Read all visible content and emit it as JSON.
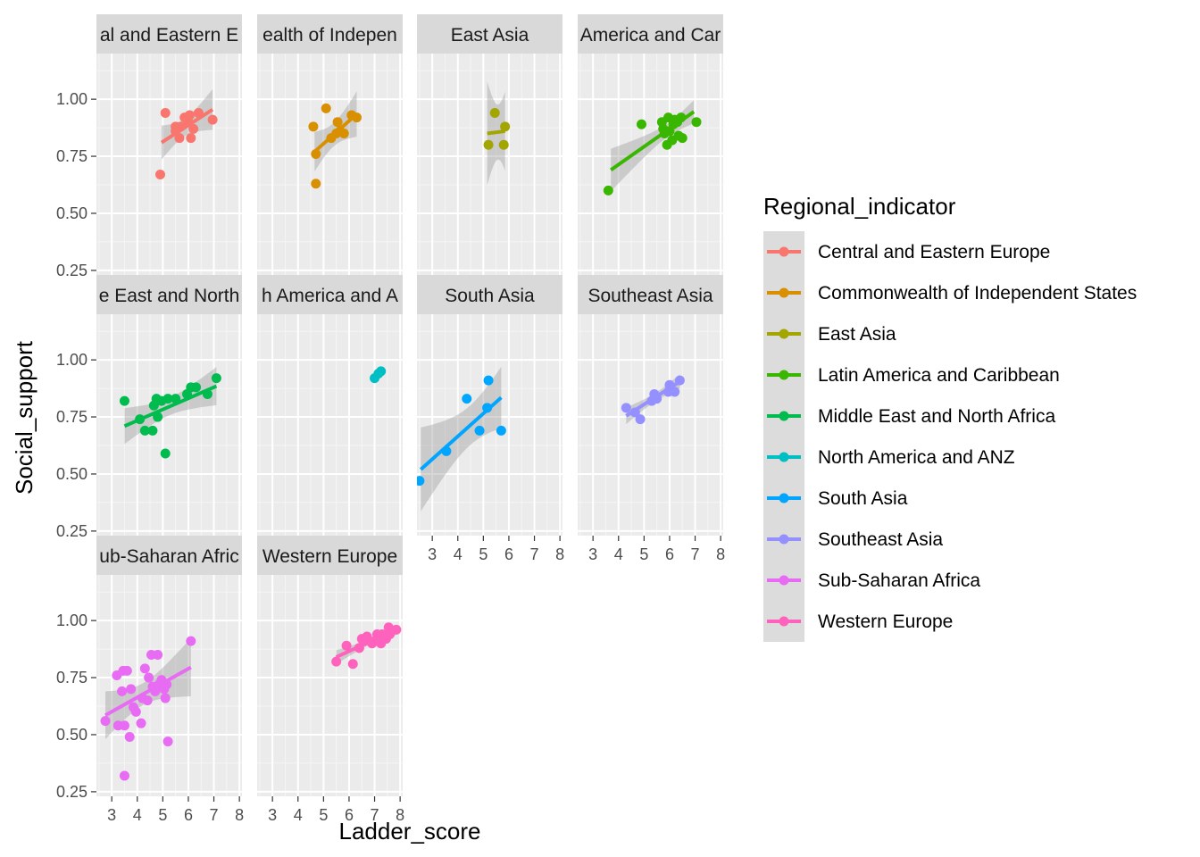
{
  "chart_data": {
    "type": "scatter",
    "facet_by": "Regional_indicator",
    "xlabel": "Ladder_score",
    "ylabel": "Social_support",
    "xlim": [
      2.4,
      8.1
    ],
    "ylim": [
      0.23,
      1.2
    ],
    "x_ticks": [
      "3",
      "4",
      "5",
      "6",
      "7",
      "8"
    ],
    "y_ticks": [
      "0.25",
      "0.50",
      "0.75",
      "1.00"
    ],
    "smooth": "lm",
    "legend": {
      "title": "Regional_indicator",
      "position": "right"
    },
    "series": [
      {
        "name": "Central and Eastern Europe",
        "strip_label": "al and Eastern E",
        "color": "#F8766D",
        "points": [
          [
            5.1,
            0.94
          ],
          [
            4.9,
            0.67
          ],
          [
            5.5,
            0.86
          ],
          [
            5.5,
            0.88
          ],
          [
            5.65,
            0.83
          ],
          [
            5.7,
            0.88
          ],
          [
            5.85,
            0.92
          ],
          [
            6.0,
            0.9
          ],
          [
            6.05,
            0.93
          ],
          [
            6.1,
            0.83
          ],
          [
            6.2,
            0.87
          ],
          [
            6.4,
            0.94
          ],
          [
            6.95,
            0.91
          ]
        ],
        "fit": {
          "x": [
            4.95,
            6.95
          ],
          "y": [
            0.81,
            0.955
          ]
        }
      },
      {
        "name": "Commonwealth of Independent States",
        "strip_label": "ealth of Indepen",
        "color": "#D89000",
        "points": [
          [
            4.6,
            0.88
          ],
          [
            4.7,
            0.76
          ],
          [
            4.7,
            0.63
          ],
          [
            5.1,
            0.96
          ],
          [
            5.3,
            0.83
          ],
          [
            5.5,
            0.85
          ],
          [
            5.55,
            0.9
          ],
          [
            5.65,
            0.86
          ],
          [
            5.8,
            0.85
          ],
          [
            6.1,
            0.93
          ],
          [
            6.3,
            0.92
          ]
        ],
        "fit": {
          "x": [
            4.65,
            6.3
          ],
          "y": [
            0.77,
            0.935
          ]
        }
      },
      {
        "name": "East Asia",
        "strip_label": "East Asia",
        "color": "#A3A500",
        "points": [
          [
            5.2,
            0.8
          ],
          [
            5.45,
            0.94
          ],
          [
            5.8,
            0.8
          ],
          [
            5.85,
            0.88
          ]
        ],
        "fit": {
          "x": [
            5.15,
            5.85
          ],
          "y": [
            0.85,
            0.86
          ]
        }
      },
      {
        "name": "Latin America and Caribbean",
        "strip_label": "America and Car",
        "color": "#39B600",
        "points": [
          [
            3.6,
            0.6
          ],
          [
            4.9,
            0.89
          ],
          [
            5.7,
            0.9
          ],
          [
            5.75,
            0.87
          ],
          [
            5.8,
            0.85
          ],
          [
            5.9,
            0.8
          ],
          [
            5.95,
            0.92
          ],
          [
            6.0,
            0.86
          ],
          [
            6.1,
            0.82
          ],
          [
            6.15,
            0.89
          ],
          [
            6.2,
            0.91
          ],
          [
            6.3,
            0.9
          ],
          [
            6.35,
            0.84
          ],
          [
            6.45,
            0.92
          ],
          [
            6.5,
            0.83
          ],
          [
            7.05,
            0.9
          ]
        ],
        "fit": {
          "x": [
            3.7,
            6.95
          ],
          "y": [
            0.69,
            0.945
          ]
        }
      },
      {
        "name": "Middle East and North Africa",
        "strip_label": "e East and North",
        "color": "#00BB4E",
        "points": [
          [
            3.5,
            0.82
          ],
          [
            4.1,
            0.74
          ],
          [
            4.3,
            0.69
          ],
          [
            4.6,
            0.69
          ],
          [
            4.65,
            0.8
          ],
          [
            4.75,
            0.83
          ],
          [
            4.8,
            0.75
          ],
          [
            4.95,
            0.82
          ],
          [
            5.1,
            0.59
          ],
          [
            5.2,
            0.83
          ],
          [
            5.5,
            0.83
          ],
          [
            5.95,
            0.85
          ],
          [
            6.1,
            0.88
          ],
          [
            6.3,
            0.88
          ],
          [
            6.75,
            0.85
          ],
          [
            7.1,
            0.92
          ]
        ],
        "fit": {
          "x": [
            3.5,
            7.1
          ],
          "y": [
            0.71,
            0.885
          ]
        }
      },
      {
        "name": "North America and ANZ",
        "strip_label": "h America and A",
        "color": "#00BFC4",
        "points": [
          [
            7.0,
            0.92
          ],
          [
            7.15,
            0.94
          ],
          [
            7.25,
            0.95
          ]
        ],
        "fit": null
      },
      {
        "name": "South Asia",
        "strip_label": "South Asia",
        "color": "#00A5FF",
        "points": [
          [
            2.5,
            0.47
          ],
          [
            3.55,
            0.6
          ],
          [
            4.35,
            0.83
          ],
          [
            4.85,
            0.69
          ],
          [
            5.15,
            0.79
          ],
          [
            5.2,
            0.91
          ],
          [
            5.7,
            0.69
          ]
        ],
        "fit": {
          "x": [
            2.55,
            5.7
          ],
          "y": [
            0.52,
            0.835
          ]
        }
      },
      {
        "name": "Southeast Asia",
        "strip_label": "Southeast Asia",
        "color": "#9590FF",
        "points": [
          [
            4.3,
            0.79
          ],
          [
            4.65,
            0.77
          ],
          [
            4.85,
            0.74
          ],
          [
            5.3,
            0.82
          ],
          [
            5.4,
            0.85
          ],
          [
            5.5,
            0.83
          ],
          [
            5.95,
            0.86
          ],
          [
            6.0,
            0.89
          ],
          [
            6.2,
            0.86
          ],
          [
            6.4,
            0.91
          ]
        ],
        "fit": {
          "x": [
            4.3,
            6.4
          ],
          "y": [
            0.755,
            0.905
          ]
        }
      },
      {
        "name": "Sub-Saharan Africa",
        "strip_label": "ub-Saharan Afric",
        "color": "#E76BF3",
        "points": [
          [
            2.75,
            0.56
          ],
          [
            3.2,
            0.76
          ],
          [
            3.25,
            0.54
          ],
          [
            3.4,
            0.69
          ],
          [
            3.45,
            0.78
          ],
          [
            3.5,
            0.54
          ],
          [
            3.5,
            0.32
          ],
          [
            3.6,
            0.78
          ],
          [
            3.7,
            0.49
          ],
          [
            3.75,
            0.7
          ],
          [
            3.85,
            0.62
          ],
          [
            3.95,
            0.6
          ],
          [
            4.15,
            0.55
          ],
          [
            4.2,
            0.66
          ],
          [
            4.3,
            0.79
          ],
          [
            4.4,
            0.65
          ],
          [
            4.45,
            0.75
          ],
          [
            4.55,
            0.85
          ],
          [
            4.6,
            0.71
          ],
          [
            4.7,
            0.69
          ],
          [
            4.8,
            0.85
          ],
          [
            4.85,
            0.72
          ],
          [
            4.95,
            0.74
          ],
          [
            5.05,
            0.7
          ],
          [
            5.1,
            0.66
          ],
          [
            5.15,
            0.72
          ],
          [
            5.2,
            0.47
          ],
          [
            6.1,
            0.91
          ]
        ],
        "fit": {
          "x": [
            2.75,
            6.1
          ],
          "y": [
            0.585,
            0.795
          ]
        }
      },
      {
        "name": "Western Europe",
        "strip_label": "Western Europe",
        "color": "#FF62BC",
        "points": [
          [
            5.5,
            0.82
          ],
          [
            5.9,
            0.89
          ],
          [
            6.15,
            0.81
          ],
          [
            6.4,
            0.88
          ],
          [
            6.5,
            0.92
          ],
          [
            6.6,
            0.91
          ],
          [
            6.7,
            0.93
          ],
          [
            6.9,
            0.9
          ],
          [
            7.0,
            0.91
          ],
          [
            7.1,
            0.94
          ],
          [
            7.15,
            0.93
          ],
          [
            7.2,
            0.92
          ],
          [
            7.25,
            0.9
          ],
          [
            7.3,
            0.94
          ],
          [
            7.45,
            0.92
          ],
          [
            7.55,
            0.97
          ],
          [
            7.6,
            0.94
          ],
          [
            7.85,
            0.96
          ]
        ],
        "fit": {
          "x": [
            5.5,
            7.85
          ],
          "y": [
            0.84,
            0.96
          ]
        }
      }
    ]
  }
}
